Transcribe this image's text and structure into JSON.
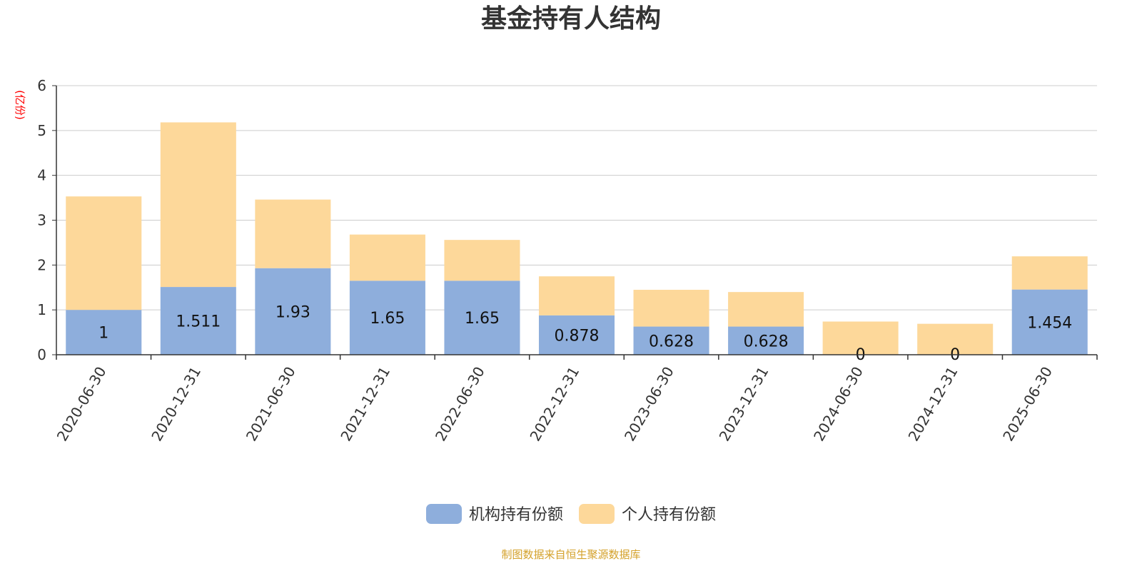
{
  "title": "基金持有人结构",
  "source_note": "制图数据来自恒生聚源数据库",
  "colors": {
    "institutional": "#8eaedc",
    "individual": "#fdd89a",
    "title": "#333333",
    "axis": "#333333",
    "grid": "#cccccc",
    "unit": "#ff0000",
    "source": "#d4a12a"
  },
  "chart_data": {
    "type": "bar",
    "stacked": true,
    "title": "基金持有人结构",
    "ylabel": "(亿份)",
    "xlabel": "",
    "ylim": [
      0,
      6
    ],
    "yticks": [
      0,
      1,
      2,
      3,
      4,
      5,
      6
    ],
    "grid": true,
    "legend_position": "bottom-center",
    "categories": [
      "2020-06-30",
      "2020-12-31",
      "2021-06-30",
      "2021-12-31",
      "2022-06-30",
      "2022-12-31",
      "2023-06-30",
      "2023-12-31",
      "2024-06-30",
      "2024-12-31",
      "2025-06-30"
    ],
    "series": [
      {
        "name": "机构持有份额",
        "color": "#8eaedc",
        "values": [
          1,
          1.511,
          1.93,
          1.65,
          1.65,
          0.878,
          0.628,
          0.628,
          0,
          0,
          1.454
        ],
        "labels": [
          "1",
          "1.511",
          "1.93",
          "1.65",
          "1.65",
          "0.878",
          "0.628",
          "0.628",
          "0",
          "0",
          "1.454"
        ]
      },
      {
        "name": "个人持有份额",
        "color": "#fdd89a",
        "values": [
          2.53,
          3.67,
          1.53,
          1.03,
          0.91,
          0.87,
          0.82,
          0.77,
          0.74,
          0.69,
          0.74
        ]
      }
    ]
  }
}
